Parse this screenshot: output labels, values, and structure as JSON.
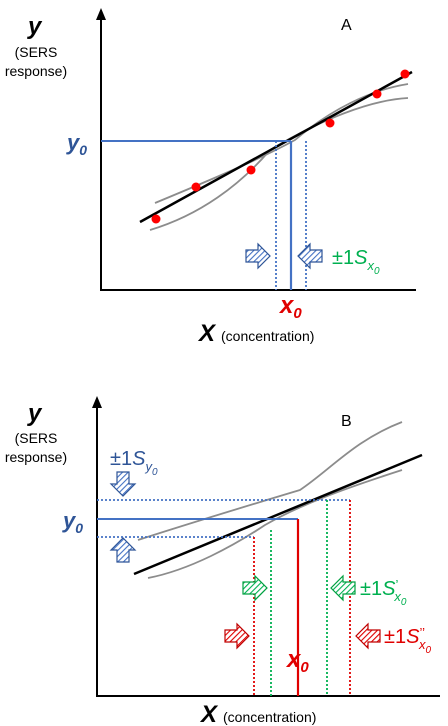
{
  "colors": {
    "black": "#000000",
    "gray": "#8c8c8c",
    "blue": "#4472c4",
    "dark_blue": "#2f5597",
    "green": "#00b050",
    "red": "#e00000",
    "point_red": "#ff0000"
  },
  "panel_a": {
    "letter": "A",
    "y_axis_symbol": "y",
    "y_axis_desc_line1": "(SERS",
    "y_axis_desc_line2": "response)",
    "x_axis_symbol": "X",
    "x_axis_desc": "(concentration)",
    "y0_base": "y",
    "y0_sub": "0",
    "x0_base": "x",
    "x0_sub": "0",
    "interval_prefix": "±1",
    "interval_base": "S",
    "interval_sub": "x",
    "interval_subsub": "0",
    "icons": [
      "hatched-arrow-right-icon",
      "hatched-arrow-left-icon"
    ]
  },
  "panel_b": {
    "letter": "B",
    "y_axis_symbol": "y",
    "y_axis_desc_line1": "(SERS",
    "y_axis_desc_line2": "response)",
    "x_axis_symbol": "X",
    "x_axis_desc": "(concentration)",
    "y0_base": "y",
    "y0_sub": "0",
    "x0_base": "x",
    "x0_sub": "0",
    "sy_prefix": "±1",
    "sy_base": "S",
    "sy_sub": "y",
    "sy_subsub": "0",
    "sx1_prefix": "±1",
    "sx1_base": "S",
    "sx1_prime": "’",
    "sx1_sub": "x",
    "sx1_subsub": "0",
    "sx2_prefix": "±1",
    "sx2_base": "S",
    "sx2_prime": "’’",
    "sx2_sub": "x",
    "sx2_subsub": "0",
    "icons": [
      "hatched-arrow-down-icon",
      "hatched-arrow-up-icon",
      "hatched-arrow-right-icon",
      "hatched-arrow-left-icon"
    ]
  }
}
